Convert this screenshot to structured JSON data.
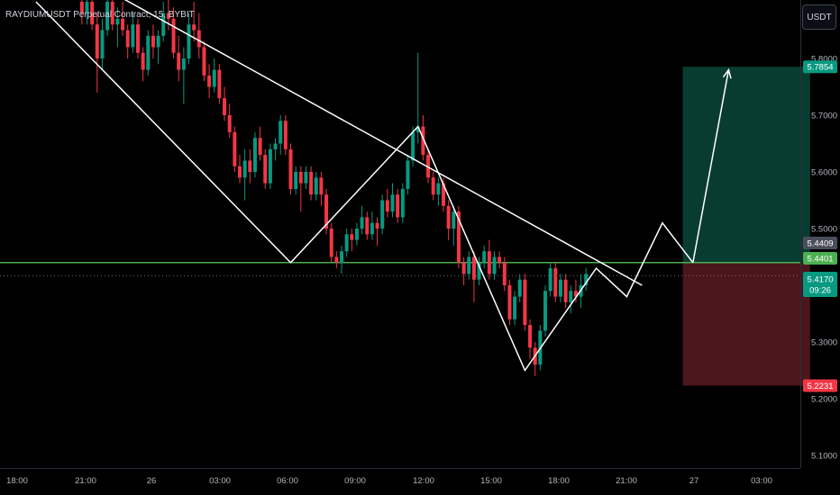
{
  "header": {
    "title": "RAYDIUMUSDT Perpetual Contract, 15, BYBIT",
    "currency": "USDT"
  },
  "price_badges": {
    "target": "5.7854",
    "breakout": "5.4409",
    "level": "5.4401",
    "last": "5.4170",
    "countdown": "09:26",
    "stop": "5.2231"
  },
  "chart_data": {
    "type": "candlestick",
    "title": "RAYDIUMUSDT Perpetual Contract, 15, BYBIT",
    "xlabel": "",
    "ylabel": "",
    "y_ticks": [
      "5.8000",
      "5.7000",
      "5.6000",
      "5.5000",
      "5.3000",
      "5.2000",
      "5.1000"
    ],
    "x_ticks": [
      "18:00",
      "21:00",
      "26",
      "03:00",
      "06:00",
      "09:00",
      "12:00",
      "15:00",
      "18:00",
      "21:00",
      "27",
      "03:00"
    ],
    "ylim": [
      5.08,
      5.92
    ],
    "colors": {
      "up": "#089981",
      "down": "#f23645",
      "level": "#4caf50",
      "lines": "#ffffff",
      "profit": "#083c31",
      "loss": "#4b161c"
    },
    "horizontal_level": 5.4401,
    "last_price": 5.417,
    "position": {
      "entry": 5.4401,
      "target": 5.7854,
      "stop": 5.2231
    },
    "trendline": [
      [
        -10,
        6.04
      ],
      [
        119,
        5.4
      ]
    ],
    "zigzag": [
      [
        0,
        5.9
      ],
      [
        50,
        5.44
      ],
      [
        75,
        5.68
      ],
      [
        96,
        5.25
      ],
      [
        110,
        5.43
      ],
      [
        116,
        5.38
      ],
      [
        123,
        5.51
      ],
      [
        129,
        5.44
      ]
    ],
    "projection": [
      [
        129,
        5.44
      ],
      [
        136,
        5.78
      ]
    ],
    "candles_start": 9,
    "candles": [
      [
        5.9,
        5.92,
        5.86,
        5.88
      ],
      [
        5.88,
        5.91,
        5.86,
        5.9
      ],
      [
        5.9,
        5.92,
        5.85,
        5.86
      ],
      [
        5.86,
        5.88,
        5.74,
        5.8
      ],
      [
        5.8,
        5.87,
        5.78,
        5.85
      ],
      [
        5.85,
        5.92,
        5.84,
        5.9
      ],
      [
        5.9,
        5.92,
        5.85,
        5.86
      ],
      [
        5.86,
        5.89,
        5.82,
        5.87
      ],
      [
        5.87,
        5.9,
        5.84,
        5.85
      ],
      [
        5.85,
        5.86,
        5.8,
        5.82
      ],
      [
        5.82,
        5.88,
        5.81,
        5.86
      ],
      [
        5.86,
        5.87,
        5.8,
        5.81
      ],
      [
        5.81,
        5.82,
        5.76,
        5.78
      ],
      [
        5.78,
        5.85,
        5.77,
        5.84
      ],
      [
        5.84,
        5.86,
        5.8,
        5.82
      ],
      [
        5.82,
        5.85,
        5.79,
        5.84
      ],
      [
        5.84,
        5.9,
        5.83,
        5.88
      ],
      [
        5.88,
        5.91,
        5.85,
        5.87
      ],
      [
        5.87,
        5.89,
        5.8,
        5.81
      ],
      [
        5.81,
        5.84,
        5.76,
        5.78
      ],
      [
        5.78,
        5.82,
        5.72,
        5.8
      ],
      [
        5.8,
        5.88,
        5.79,
        5.86
      ],
      [
        5.86,
        5.9,
        5.83,
        5.85
      ],
      [
        5.85,
        5.88,
        5.8,
        5.82
      ],
      [
        5.82,
        5.83,
        5.76,
        5.77
      ],
      [
        5.77,
        5.79,
        5.73,
        5.75
      ],
      [
        5.75,
        5.8,
        5.74,
        5.78
      ],
      [
        5.78,
        5.79,
        5.72,
        5.73
      ],
      [
        5.73,
        5.75,
        5.69,
        5.7
      ],
      [
        5.7,
        5.72,
        5.66,
        5.67
      ],
      [
        5.67,
        5.68,
        5.6,
        5.61
      ],
      [
        5.61,
        5.63,
        5.58,
        5.59
      ],
      [
        5.59,
        5.64,
        5.55,
        5.62
      ],
      [
        5.62,
        5.64,
        5.58,
        5.6
      ],
      [
        5.6,
        5.67,
        5.59,
        5.66
      ],
      [
        5.66,
        5.68,
        5.62,
        5.63
      ],
      [
        5.63,
        5.64,
        5.57,
        5.58
      ],
      [
        5.58,
        5.65,
        5.57,
        5.64
      ],
      [
        5.64,
        5.66,
        5.62,
        5.65
      ],
      [
        5.65,
        5.7,
        5.63,
        5.69
      ],
      [
        5.69,
        5.7,
        5.63,
        5.64
      ],
      [
        5.64,
        5.65,
        5.56,
        5.57
      ],
      [
        5.57,
        5.61,
        5.56,
        5.6
      ],
      [
        5.6,
        5.61,
        5.53,
        5.58
      ],
      [
        5.58,
        5.61,
        5.57,
        5.6
      ],
      [
        5.6,
        5.61,
        5.55,
        5.56
      ],
      [
        5.56,
        5.6,
        5.55,
        5.59
      ],
      [
        5.59,
        5.6,
        5.54,
        5.56
      ],
      [
        5.56,
        5.57,
        5.49,
        5.5
      ],
      [
        5.5,
        5.51,
        5.44,
        5.45
      ],
      [
        5.45,
        5.46,
        5.43,
        5.44
      ],
      [
        5.44,
        5.47,
        5.42,
        5.46
      ],
      [
        5.46,
        5.5,
        5.45,
        5.49
      ],
      [
        5.49,
        5.5,
        5.46,
        5.48
      ],
      [
        5.48,
        5.51,
        5.47,
        5.5
      ],
      [
        5.5,
        5.54,
        5.49,
        5.52
      ],
      [
        5.52,
        5.53,
        5.48,
        5.49
      ],
      [
        5.49,
        5.53,
        5.48,
        5.51
      ],
      [
        5.51,
        5.52,
        5.47,
        5.5
      ],
      [
        5.5,
        5.56,
        5.49,
        5.55
      ],
      [
        5.55,
        5.57,
        5.52,
        5.53
      ],
      [
        5.53,
        5.58,
        5.52,
        5.56
      ],
      [
        5.56,
        5.57,
        5.51,
        5.52
      ],
      [
        5.52,
        5.58,
        5.51,
        5.57
      ],
      [
        5.57,
        5.63,
        5.56,
        5.62
      ],
      [
        5.62,
        5.68,
        5.61,
        5.67
      ],
      [
        5.67,
        5.81,
        5.65,
        5.68
      ],
      [
        5.68,
        5.7,
        5.62,
        5.63
      ],
      [
        5.63,
        5.64,
        5.58,
        5.59
      ],
      [
        5.59,
        5.6,
        5.55,
        5.56
      ],
      [
        5.56,
        5.59,
        5.54,
        5.58
      ],
      [
        5.58,
        5.59,
        5.53,
        5.54
      ],
      [
        5.54,
        5.55,
        5.48,
        5.5
      ],
      [
        5.5,
        5.54,
        5.47,
        5.53
      ],
      [
        5.53,
        5.54,
        5.43,
        5.44
      ],
      [
        5.44,
        5.45,
        5.4,
        5.42
      ],
      [
        5.42,
        5.46,
        5.41,
        5.45
      ],
      [
        5.45,
        5.46,
        5.37,
        5.41
      ],
      [
        5.41,
        5.45,
        5.4,
        5.44
      ],
      [
        5.44,
        5.47,
        5.43,
        5.46
      ],
      [
        5.46,
        5.48,
        5.41,
        5.42
      ],
      [
        5.42,
        5.46,
        5.41,
        5.45
      ],
      [
        5.45,
        5.46,
        5.43,
        5.44
      ],
      [
        5.44,
        5.45,
        5.39,
        5.4
      ],
      [
        5.4,
        5.41,
        5.33,
        5.34
      ],
      [
        5.34,
        5.39,
        5.33,
        5.38
      ],
      [
        5.38,
        5.42,
        5.37,
        5.41
      ],
      [
        5.41,
        5.42,
        5.32,
        5.33
      ],
      [
        5.33,
        5.34,
        5.27,
        5.29
      ],
      [
        5.29,
        5.3,
        5.24,
        5.26
      ],
      [
        5.26,
        5.33,
        5.25,
        5.32
      ],
      [
        5.32,
        5.4,
        5.31,
        5.39
      ],
      [
        5.39,
        5.44,
        5.38,
        5.43
      ],
      [
        5.43,
        5.44,
        5.37,
        5.38
      ],
      [
        5.38,
        5.42,
        5.37,
        5.41
      ],
      [
        5.41,
        5.42,
        5.36,
        5.37
      ],
      [
        5.37,
        5.4,
        5.35,
        5.39
      ],
      [
        5.39,
        5.41,
        5.37,
        5.38
      ],
      [
        5.38,
        5.42,
        5.36,
        5.4
      ],
      [
        5.4,
        5.43,
        5.39,
        5.42
      ]
    ]
  }
}
